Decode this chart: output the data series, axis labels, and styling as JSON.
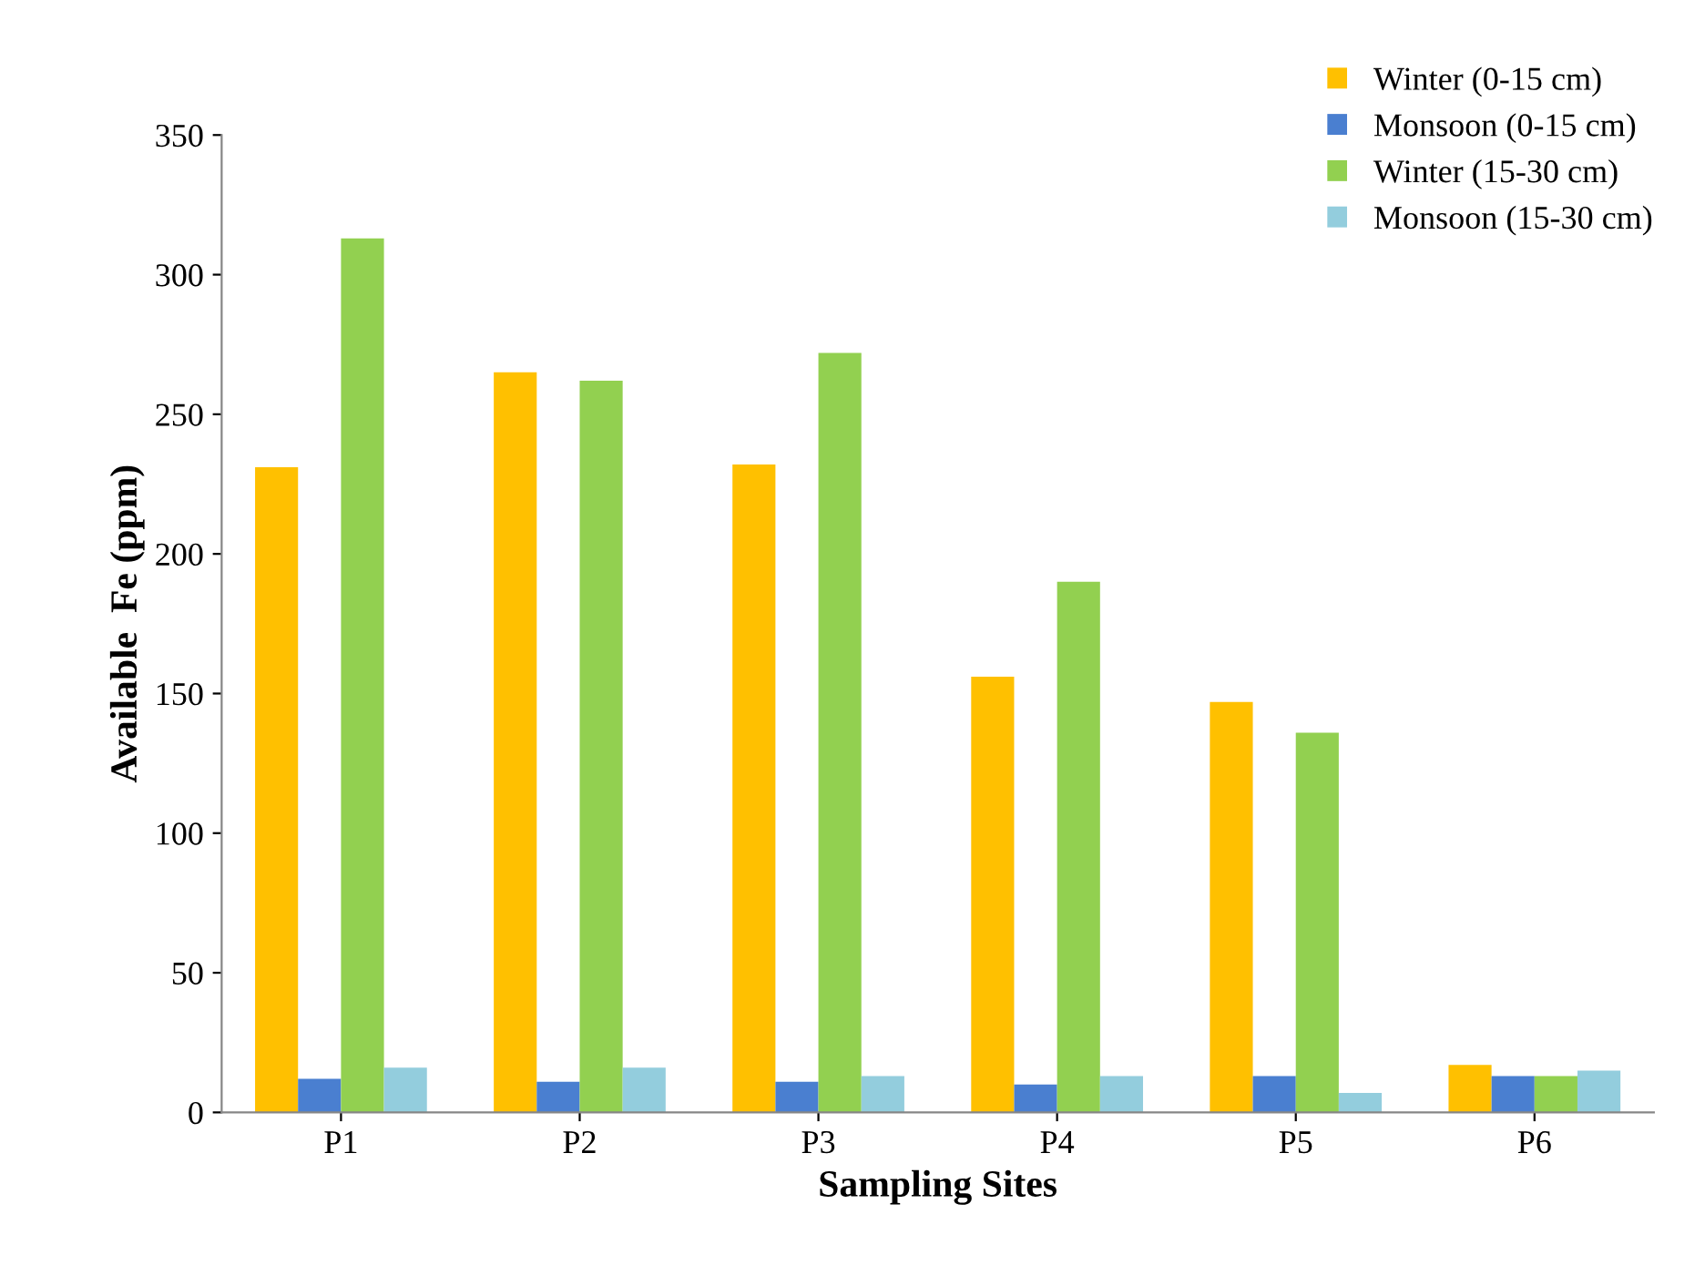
{
  "chart_data": {
    "type": "bar",
    "xlabel": "Sampling Sites",
    "ylabel": "Available  Fe (ppm)",
    "categories": [
      "P1",
      "P2",
      "P3",
      "P4",
      "P5",
      "P6"
    ],
    "series": [
      {
        "name": "Winter (0-15 cm)",
        "color": "#ffc000",
        "values": [
          231,
          265,
          232,
          156,
          147,
          17
        ]
      },
      {
        "name": "Monsoon (0-15 cm)",
        "color": "#4a7fd0",
        "values": [
          12,
          11,
          11,
          10,
          13,
          13
        ]
      },
      {
        "name": "Winter (15-30 cm)",
        "color": "#92d050",
        "values": [
          313,
          262,
          272,
          190,
          136,
          13
        ]
      },
      {
        "name": "Monsoon (15-30 cm)",
        "color": "#93cddd",
        "values": [
          16,
          16,
          13,
          13,
          7,
          15
        ]
      }
    ],
    "ylim": [
      0,
      350
    ],
    "yticks": [
      0,
      50,
      100,
      150,
      200,
      250,
      300,
      350
    ],
    "grid": false,
    "legend": "top right"
  }
}
